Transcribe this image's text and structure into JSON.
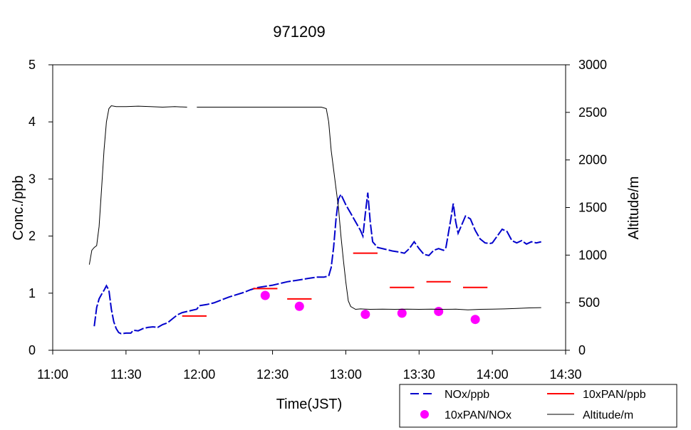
{
  "chart_data": {
    "type": "line",
    "title": "971209",
    "xlabel": "Time(JST)",
    "ylabel": "Conc./ppb",
    "y2label": "Altitude/m",
    "xlim": [
      "11:00",
      "14:30"
    ],
    "ylim": [
      0,
      5
    ],
    "y2lim": [
      0,
      3000
    ],
    "x_ticks": [
      "11:00",
      "11:30",
      "12:00",
      "12:30",
      "13:00",
      "13:30",
      "14:00",
      "14:30"
    ],
    "y_ticks": [
      "0",
      "1",
      "2",
      "3",
      "4",
      "5"
    ],
    "y2_ticks": [
      "0",
      "500",
      "1000",
      "1500",
      "2000",
      "2500",
      "3000"
    ],
    "grid": false,
    "legend_position": "bottom-right",
    "series": [
      {
        "name": "NOx/ppb",
        "axis": "left",
        "style": "dashed",
        "color": "#0000cc",
        "points": [
          [
            "11:17",
            0.42
          ],
          [
            "11:18",
            0.75
          ],
          [
            "11:19",
            0.9
          ],
          [
            "11:20",
            0.98
          ],
          [
            "11:21",
            1.05
          ],
          [
            "11:22",
            1.13
          ],
          [
            "11:23",
            1.05
          ],
          [
            "11:24",
            0.72
          ],
          [
            "11:25",
            0.5
          ],
          [
            "11:26",
            0.38
          ],
          [
            "11:27",
            0.31
          ],
          [
            "11:28",
            0.29
          ],
          [
            "11:30",
            0.3
          ],
          [
            "11:32",
            0.3
          ],
          [
            "11:33",
            0.35
          ],
          [
            "11:35",
            0.34
          ],
          [
            "11:37",
            0.38
          ],
          [
            "11:39",
            0.4
          ],
          [
            "11:41",
            0.41
          ],
          [
            "11:43",
            0.4
          ],
          [
            "11:45",
            0.45
          ],
          [
            "11:47",
            0.48
          ],
          [
            "11:49",
            0.55
          ],
          [
            "11:51",
            0.62
          ],
          [
            "11:53",
            0.66
          ],
          [
            "11:55",
            0.68
          ],
          [
            "11:57",
            0.7
          ],
          [
            "11:59",
            0.72
          ],
          [
            "12:00",
            0.78
          ],
          [
            "12:03",
            0.8
          ],
          [
            "12:06",
            0.83
          ],
          [
            "12:09",
            0.88
          ],
          [
            "12:12",
            0.93
          ],
          [
            "12:15",
            0.97
          ],
          [
            "12:18",
            1.01
          ],
          [
            "12:21",
            1.06
          ],
          [
            "12:24",
            1.1
          ],
          [
            "12:27",
            1.12
          ],
          [
            "12:30",
            1.14
          ],
          [
            "12:33",
            1.17
          ],
          [
            "12:36",
            1.2
          ],
          [
            "12:39",
            1.22
          ],
          [
            "12:42",
            1.24
          ],
          [
            "12:45",
            1.26
          ],
          [
            "12:48",
            1.28
          ],
          [
            "12:51",
            1.28
          ],
          [
            "12:53",
            1.3
          ],
          [
            "12:54",
            1.45
          ],
          [
            "12:55",
            1.8
          ],
          [
            "12:56",
            2.3
          ],
          [
            "12:57",
            2.65
          ],
          [
            "12:58",
            2.73
          ],
          [
            "13:00",
            2.55
          ],
          [
            "13:02",
            2.4
          ],
          [
            "13:04",
            2.25
          ],
          [
            "13:06",
            2.1
          ],
          [
            "13:07",
            2.0
          ],
          [
            "13:08",
            2.4
          ],
          [
            "13:09",
            2.76
          ],
          [
            "13:10",
            2.25
          ],
          [
            "13:11",
            1.9
          ],
          [
            "13:13",
            1.8
          ],
          [
            "13:16",
            1.77
          ],
          [
            "13:19",
            1.74
          ],
          [
            "13:22",
            1.72
          ],
          [
            "13:24",
            1.7
          ],
          [
            "13:26",
            1.78
          ],
          [
            "13:28",
            1.9
          ],
          [
            "13:30",
            1.78
          ],
          [
            "13:32",
            1.68
          ],
          [
            "13:34",
            1.66
          ],
          [
            "13:36",
            1.75
          ],
          [
            "13:38",
            1.78
          ],
          [
            "13:40",
            1.75
          ],
          [
            "13:41",
            1.8
          ],
          [
            "13:43",
            2.3
          ],
          [
            "13:44",
            2.57
          ],
          [
            "13:45",
            2.25
          ],
          [
            "13:46",
            2.05
          ],
          [
            "13:48",
            2.25
          ],
          [
            "13:49",
            2.35
          ],
          [
            "13:51",
            2.3
          ],
          [
            "13:53",
            2.1
          ],
          [
            "13:55",
            1.95
          ],
          [
            "13:57",
            1.88
          ],
          [
            "13:59",
            1.87
          ],
          [
            "14:00",
            1.88
          ],
          [
            "14:02",
            2.0
          ],
          [
            "14:04",
            2.12
          ],
          [
            "14:06",
            2.08
          ],
          [
            "14:08",
            1.92
          ],
          [
            "14:10",
            1.88
          ],
          [
            "14:12",
            1.92
          ],
          [
            "14:14",
            1.86
          ],
          [
            "14:16",
            1.9
          ],
          [
            "14:18",
            1.88
          ],
          [
            "14:20",
            1.9
          ]
        ]
      },
      {
        "name": "10xPAN/ppb",
        "axis": "left",
        "style": "segments",
        "color": "#ff0000",
        "segments": [
          [
            "11:53",
            "12:03",
            0.6
          ],
          [
            "12:22",
            "12:32",
            1.08
          ],
          [
            "12:36",
            "12:46",
            0.9
          ],
          [
            "13:03",
            "13:13",
            1.7
          ],
          [
            "13:18",
            "13:28",
            1.1
          ],
          [
            "13:33",
            "13:43",
            1.2
          ],
          [
            "13:48",
            "13:58",
            1.1
          ]
        ]
      },
      {
        "name": "10xPAN/NOx",
        "axis": "left",
        "style": "markers",
        "color": "#ff00ff",
        "points": [
          [
            "12:27",
            0.96
          ],
          [
            "12:41",
            0.77
          ],
          [
            "13:08",
            0.63
          ],
          [
            "13:23",
            0.65
          ],
          [
            "13:38",
            0.68
          ],
          [
            "13:53",
            0.54
          ]
        ]
      },
      {
        "name": "Altitude/m",
        "axis": "right",
        "style": "solid",
        "color": "#000000",
        "points": [
          [
            "11:15",
            900
          ],
          [
            "11:16",
            1050
          ],
          [
            "11:17",
            1080
          ],
          [
            "11:18",
            1100
          ],
          [
            "11:19",
            1300
          ],
          [
            "11:20",
            1700
          ],
          [
            "11:21",
            2100
          ],
          [
            "11:22",
            2400
          ],
          [
            "11:23",
            2540
          ],
          [
            "11:24",
            2570
          ],
          [
            "11:26",
            2560
          ],
          [
            "11:30",
            2560
          ],
          [
            "11:35",
            2565
          ],
          [
            "11:40",
            2560
          ],
          [
            "11:45",
            2555
          ],
          [
            "11:50",
            2560
          ],
          [
            "11:55",
            2555
          ],
          null,
          [
            "11:59",
            2555
          ],
          [
            "12:05",
            2555
          ],
          [
            "12:10",
            2555
          ],
          [
            "12:20",
            2555
          ],
          [
            "12:30",
            2555
          ],
          [
            "12:40",
            2555
          ],
          [
            "12:50",
            2555
          ],
          [
            "12:52",
            2540
          ],
          [
            "12:53",
            2400
          ],
          [
            "12:54",
            2100
          ],
          [
            "12:55",
            1900
          ],
          [
            "12:56",
            1700
          ],
          [
            "12:57",
            1500
          ],
          [
            "12:58",
            1200
          ],
          [
            "12:59",
            950
          ],
          [
            "13:00",
            720
          ],
          [
            "13:01",
            520
          ],
          [
            "13:02",
            460
          ],
          [
            "13:04",
            430
          ],
          [
            "13:06",
            435
          ],
          [
            "13:10",
            430
          ],
          [
            "13:15",
            432
          ],
          [
            "13:20",
            430
          ],
          [
            "13:25",
            432
          ],
          [
            "13:30",
            430
          ],
          [
            "13:35",
            432
          ],
          [
            "13:40",
            430
          ],
          [
            "13:45",
            432
          ],
          [
            "13:50",
            425
          ],
          [
            "13:55",
            430
          ],
          [
            "14:00",
            432
          ],
          [
            "14:05",
            435
          ],
          [
            "14:10",
            440
          ],
          [
            "14:15",
            445
          ],
          [
            "14:20",
            448
          ]
        ]
      }
    ]
  }
}
